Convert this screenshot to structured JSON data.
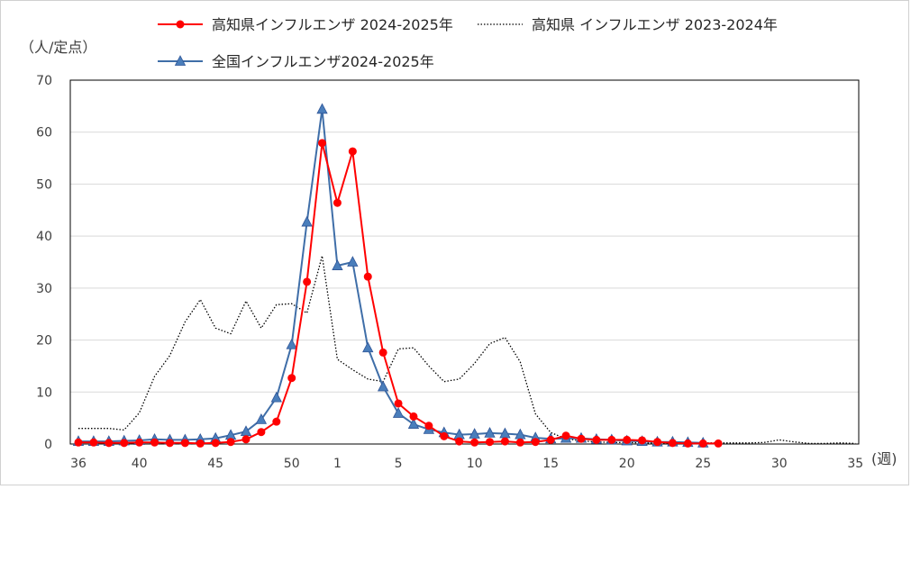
{
  "chart_data": {
    "type": "line",
    "ylabel": "（人/定点）",
    "xlabel": "(週)",
    "ylim": [
      0,
      70
    ],
    "yticks": [
      0,
      10,
      20,
      30,
      40,
      50,
      60,
      70
    ],
    "weeks": [
      36,
      37,
      38,
      39,
      40,
      41,
      42,
      43,
      44,
      45,
      46,
      47,
      48,
      49,
      50,
      51,
      52,
      1,
      2,
      3,
      4,
      5,
      6,
      7,
      8,
      9,
      10,
      11,
      12,
      13,
      14,
      15,
      16,
      17,
      18,
      19,
      20,
      21,
      22,
      23,
      24,
      25,
      26,
      27,
      28,
      29,
      30,
      31,
      32,
      33,
      34,
      35
    ],
    "xticks": [
      {
        "week": 36,
        "label": "36"
      },
      {
        "week": 40,
        "label": "40"
      },
      {
        "week": 45,
        "label": "45"
      },
      {
        "week": 50,
        "label": "50"
      },
      {
        "week": 1,
        "label": "1"
      },
      {
        "week": 5,
        "label": "5"
      },
      {
        "week": 10,
        "label": "10"
      },
      {
        "week": 15,
        "label": "15"
      },
      {
        "week": 20,
        "label": "20"
      },
      {
        "week": 25,
        "label": "25"
      },
      {
        "week": 30,
        "label": "30"
      },
      {
        "week": 35,
        "label": "35"
      }
    ],
    "legend_position": "top",
    "grid": true,
    "series": [
      {
        "name": "高知県インフルエンザ 2024-2025年",
        "color": "#ff0000",
        "marker": "circle",
        "style": "solid",
        "values": [
          0.3,
          0.3,
          0.2,
          0.2,
          0.3,
          0.3,
          0.2,
          0.2,
          0.1,
          0.2,
          0.4,
          0.9,
          2.3,
          4.3,
          12.7,
          31.2,
          57.9,
          46.4,
          56.3,
          32.2,
          17.6,
          7.8,
          5.3,
          3.5,
          1.5,
          0.5,
          0.3,
          0.4,
          0.5,
          0.3,
          0.4,
          0.8,
          1.6,
          1.0,
          0.8,
          0.8,
          0.8,
          0.7,
          0.4,
          0.2,
          0.1,
          0.1,
          0.1
        ]
      },
      {
        "name": "高知県 インフルエンザ 2023-2024年",
        "color": "#000000",
        "marker": "none",
        "style": "dotted",
        "values": [
          3.0,
          3.0,
          3.0,
          2.7,
          6.0,
          13.0,
          17.0,
          23.5,
          27.8,
          22.3,
          21.2,
          27.5,
          22.3,
          26.8,
          27.0,
          25.2,
          36.2,
          16.3,
          14.3,
          12.5,
          12.0,
          18.3,
          18.5,
          15.0,
          12.0,
          12.5,
          15.5,
          19.3,
          20.5,
          15.8,
          5.8,
          2.2,
          1.0,
          0.6,
          0.4,
          0.3,
          0.3,
          0.2,
          0.2,
          0.2,
          0.2,
          0.2,
          0.2,
          0.2,
          0.2,
          0.3,
          0.8,
          0.4,
          0.1,
          0.1,
          0.2,
          0.1
        ]
      },
      {
        "name": "全国インフルエンザ2024-2025年",
        "color": "#3f6ea8",
        "marker": "triangle",
        "style": "solid",
        "values": [
          0.5,
          0.5,
          0.5,
          0.6,
          0.7,
          0.9,
          0.8,
          0.8,
          0.9,
          1.1,
          1.7,
          2.4,
          4.7,
          8.9,
          19.1,
          42.7,
          64.4,
          34.3,
          35.0,
          18.5,
          11.0,
          5.9,
          3.8,
          2.8,
          2.2,
          1.8,
          1.9,
          2.1,
          2.0,
          1.8,
          1.2,
          1.0,
          1.1,
          1.1,
          0.9,
          0.8,
          0.6,
          0.5,
          0.4,
          0.4,
          0.3,
          0.2
        ]
      }
    ]
  }
}
